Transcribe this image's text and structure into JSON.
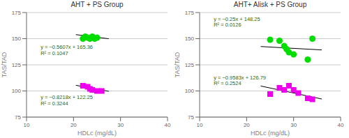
{
  "chart_data": [
    {
      "type": "scatter",
      "title": "AHT + PS Group",
      "x_label": "HDLc (mg/dL)",
      "y_label": "TAS/TAD",
      "xlim": [
        10,
        40
      ],
      "ylim": [
        75,
        175
      ],
      "xticks": [
        10,
        20,
        30,
        40
      ],
      "yticks": [
        75,
        100,
        125,
        150,
        175
      ],
      "grid": "y",
      "series": [
        {
          "type": "line",
          "color": "black",
          "x": [
            20.5,
            27.5
          ],
          "values": [
            153.86565,
            149.94075
          ]
        },
        {
          "type": "line",
          "color": "black",
          "x": [
            20.5,
            27.5
          ],
          "values": [
            105.4031,
            99.6505
          ]
        },
        {
          "type": "scatter",
          "marker": "circle",
          "color": "#00dd00",
          "x": [
            22.0,
            22.5,
            23.0,
            23.5,
            24.0,
            24.5,
            25.0
          ],
          "values": [
            150,
            152,
            151,
            150,
            152,
            150,
            151
          ]
        },
        {
          "type": "scatter",
          "marker": "square",
          "color": "#ee00ee",
          "x": [
            22.0,
            23.0,
            23.5,
            24.0,
            25.0,
            26.0
          ],
          "values": [
            105,
            104,
            102,
            101,
            100,
            100
          ]
        }
      ],
      "annotations": [
        {
          "text": "y = −0.5607x + 165.36\nR² = 0.1047",
          "x": 13,
          "y": 145,
          "color": "#336600"
        },
        {
          "text": "y = −0.8218x + 122.25\nR² = 0.3244",
          "x": 13,
          "y": 97,
          "color": "#336600"
        }
      ]
    },
    {
      "type": "scatter",
      "title": "AHT+ Alisk + PS Group",
      "x_label": "HDLc (mg/dL)",
      "y_label": "TAS/TAD",
      "xlim": [
        10,
        40
      ],
      "ylim": [
        75,
        175
      ],
      "xticks": [
        10,
        20,
        30,
        40
      ],
      "yticks": [
        75,
        100,
        125,
        150,
        175
      ],
      "grid": "y",
      "series": [
        {
          "type": "line",
          "color": "black",
          "x": [
            23,
            36
          ],
          "values": [
            142.5,
            139.25
          ]
        },
        {
          "type": "line",
          "color": "black",
          "x": [
            23,
            36
          ],
          "values": [
            104.7491,
            92.2912
          ]
        },
        {
          "type": "scatter",
          "marker": "circle",
          "color": "#00dd00",
          "x": [
            25,
            27,
            28,
            28.5,
            29,
            30,
            33,
            34
          ],
          "values": [
            149,
            148,
            143,
            140,
            137,
            135,
            130,
            150
          ]
        },
        {
          "type": "scatter",
          "marker": "square",
          "color": "#ee00ee",
          "x": [
            25,
            27,
            28,
            29,
            30,
            31,
            33,
            34
          ],
          "values": [
            97,
            103,
            101,
            105,
            101,
            98,
            93,
            92
          ]
        }
      ],
      "annotations": [
        {
          "text": "y = −0.25x + 148.25\nR² = 0.0126",
          "x": 13,
          "y": 172,
          "color": "#336600"
        },
        {
          "text": "y = −0.9583x + 126.79\nR² = 0.2524",
          "x": 13,
          "y": 116,
          "color": "#336600"
        }
      ]
    }
  ]
}
